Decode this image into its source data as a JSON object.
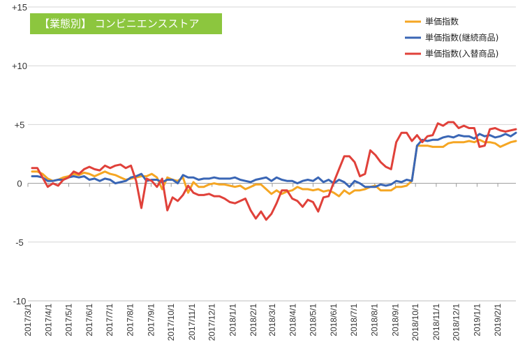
{
  "chart_data": {
    "type": "line",
    "title": "【業態別】 コンビニエンスストア",
    "title_bg_color": "#8cc63e",
    "ylim": [
      -10,
      15
    ],
    "y_ticks": [
      -10,
      -5,
      0,
      5,
      10,
      15
    ],
    "y_tick_labels": [
      "-10",
      "-5",
      "0",
      "+5",
      "+10",
      "+15"
    ],
    "x_start": "2017/3/1",
    "x_end": "2019/2/28",
    "x_tick_labels": [
      "2017/3/1",
      "2017/4/1",
      "2017/5/1",
      "2017/6/1",
      "2017/7/1",
      "2017/8/1",
      "2017/9/1",
      "2017/10/1",
      "2017/11/1",
      "2017/12/1",
      "2018/1/1",
      "2018/2/1",
      "2018/3/1",
      "2018/4/1",
      "2018/5/1",
      "2018/6/1",
      "2018/7/1",
      "2018/8/1",
      "2018/9/1",
      "2018/10/1",
      "2018/11/1",
      "2018/12/1",
      "2019/1/1",
      "2019/2/1"
    ],
    "grid": "horizontal",
    "legend_position": "top-right",
    "series": [
      {
        "name": "単価指数",
        "color": "#f5a623",
        "values": [
          1.0,
          1.0,
          0.8,
          0.4,
          0.2,
          0.3,
          0.5,
          0.6,
          0.8,
          0.7,
          0.9,
          0.8,
          0.6,
          0.8,
          1.0,
          0.8,
          0.7,
          0.5,
          0.3,
          0.4,
          0.5,
          0.6,
          0.6,
          0.8,
          0.5,
          -0.5,
          0.5,
          0.3,
          0.2,
          0.5,
          -0.8,
          0.1,
          -0.3,
          -0.3,
          -0.1,
          0.0,
          -0.1,
          -0.1,
          -0.2,
          -0.3,
          -0.2,
          -0.5,
          -0.3,
          -0.1,
          -0.1,
          -0.5,
          -0.9,
          -0.6,
          -0.9,
          -0.7,
          -0.6,
          -0.3,
          -0.5,
          -0.5,
          -0.6,
          -0.5,
          -0.7,
          -0.6,
          -0.8,
          -1.1,
          -0.6,
          -0.9,
          -0.6,
          -0.6,
          -0.5,
          -0.3,
          -0.2,
          -0.6,
          -0.6,
          -0.6,
          -0.3,
          -0.3,
          -0.2,
          0.2,
          3.2,
          3.2,
          3.2,
          3.1,
          3.1,
          3.1,
          3.4,
          3.5,
          3.5,
          3.5,
          3.6,
          3.5,
          3.7,
          3.5,
          3.5,
          3.4,
          3.1,
          3.3,
          3.5,
          3.6
        ]
      },
      {
        "name": "単価指数(継続商品)",
        "color": "#3a66b5",
        "values": [
          0.6,
          0.6,
          0.5,
          0.2,
          0.2,
          0.3,
          0.3,
          0.5,
          0.6,
          0.5,
          0.6,
          0.3,
          0.4,
          0.2,
          0.4,
          0.3,
          0.0,
          0.1,
          0.2,
          0.5,
          0.6,
          0.8,
          0.2,
          0.3,
          0.3,
          0.1,
          0.3,
          0.3,
          0.0,
          0.7,
          0.5,
          0.5,
          0.3,
          0.4,
          0.4,
          0.5,
          0.4,
          0.4,
          0.4,
          0.5,
          0.3,
          0.2,
          0.1,
          0.3,
          0.4,
          0.5,
          0.2,
          0.5,
          0.3,
          0.2,
          0.2,
          0.0,
          0.2,
          0.3,
          0.2,
          0.5,
          0.1,
          0.3,
          0.0,
          0.3,
          0.1,
          -0.3,
          0.2,
          0.0,
          -0.3,
          -0.3,
          -0.3,
          -0.1,
          -0.2,
          -0.1,
          0.2,
          0.1,
          0.3,
          0.2,
          3.2,
          3.7,
          3.6,
          3.7,
          3.7,
          3.9,
          4.0,
          3.9,
          4.1,
          4.0,
          4.0,
          3.8,
          4.2,
          4.0,
          4.1,
          3.9,
          4.0,
          4.2,
          4.0,
          4.3
        ]
      },
      {
        "name": "単価指数(入替商品)",
        "color": "#e0413a",
        "values": [
          1.3,
          1.3,
          0.5,
          -0.3,
          0.0,
          -0.2,
          0.3,
          0.5,
          1.0,
          0.8,
          1.2,
          1.4,
          1.2,
          1.1,
          1.5,
          1.3,
          1.5,
          1.6,
          1.3,
          1.5,
          0.2,
          -2.1,
          0.4,
          0.2,
          -0.3,
          0.4,
          -2.3,
          -1.2,
          -1.5,
          -1.0,
          -0.2,
          -0.8,
          -1.0,
          -1.0,
          -0.9,
          -1.1,
          -1.1,
          -1.3,
          -1.6,
          -1.7,
          -1.5,
          -1.3,
          -2.3,
          -3.0,
          -2.4,
          -3.1,
          -2.6,
          -1.7,
          -0.6,
          -0.6,
          -1.3,
          -1.5,
          -2.0,
          -1.4,
          -1.6,
          -2.4,
          -1.2,
          -1.1,
          0.1,
          1.2,
          2.3,
          2.3,
          1.8,
          0.6,
          0.8,
          2.8,
          2.4,
          1.8,
          1.4,
          1.2,
          3.5,
          4.3,
          4.3,
          3.6,
          4.1,
          3.5,
          4.0,
          4.1,
          5.1,
          4.9,
          5.2,
          5.2,
          4.7,
          4.9,
          4.7,
          4.7,
          3.1,
          3.2,
          4.6,
          4.7,
          4.5,
          4.4,
          4.5,
          4.6
        ]
      }
    ]
  }
}
